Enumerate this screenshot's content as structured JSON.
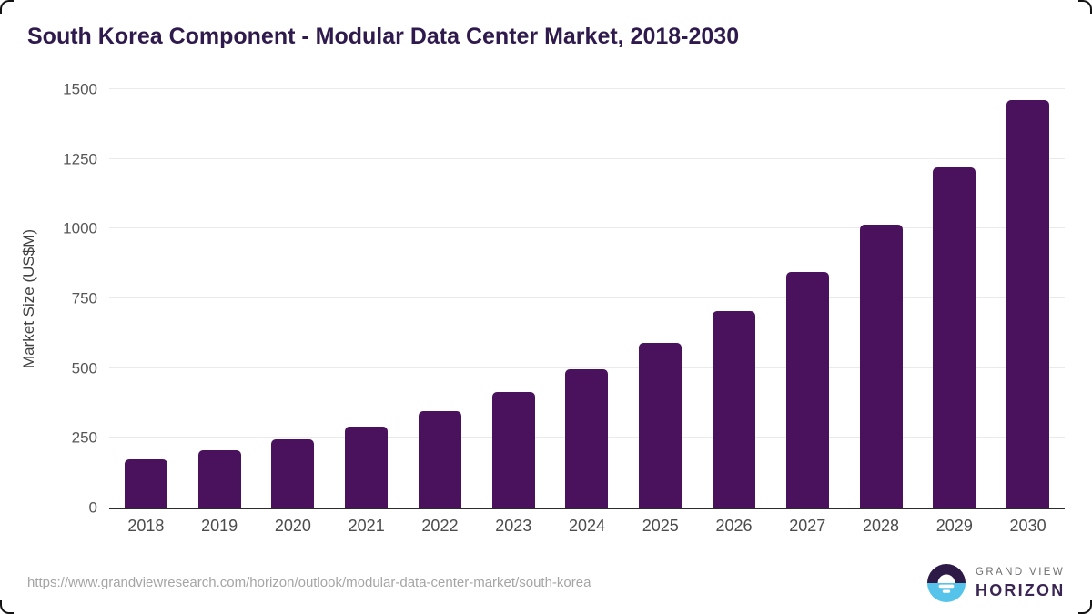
{
  "header": {
    "title": "South Korea Component - Modular Data Center Market, 2018-2030"
  },
  "chart_data": {
    "type": "bar",
    "title": "South Korea Component - Modular Data Center Market, 2018-2030",
    "categories": [
      "2018",
      "2019",
      "2020",
      "2021",
      "2022",
      "2023",
      "2024",
      "2025",
      "2026",
      "2027",
      "2028",
      "2029",
      "2030"
    ],
    "values": [
      173,
      206,
      243,
      290,
      347,
      414,
      495,
      591,
      706,
      845,
      1013,
      1218,
      1460
    ],
    "xlabel": "",
    "ylabel": "Market Size (US$M)",
    "ylim": [
      0,
      1500
    ],
    "yticks": [
      0,
      250,
      500,
      750,
      1000,
      1250,
      1500
    ],
    "grid": true,
    "legend": "none",
    "bar_color": "#4a115c"
  },
  "footer": {
    "source_url": "https://www.grandviewresearch.com/horizon/outlook/modular-data-center-market/south-korea",
    "logo": {
      "line1": "GRAND VIEW",
      "line2": "HORIZON",
      "icon": "sunrise-horizon-icon",
      "icon_top_color": "#2d1a47",
      "icon_bottom_color": "#55c3ea"
    }
  }
}
